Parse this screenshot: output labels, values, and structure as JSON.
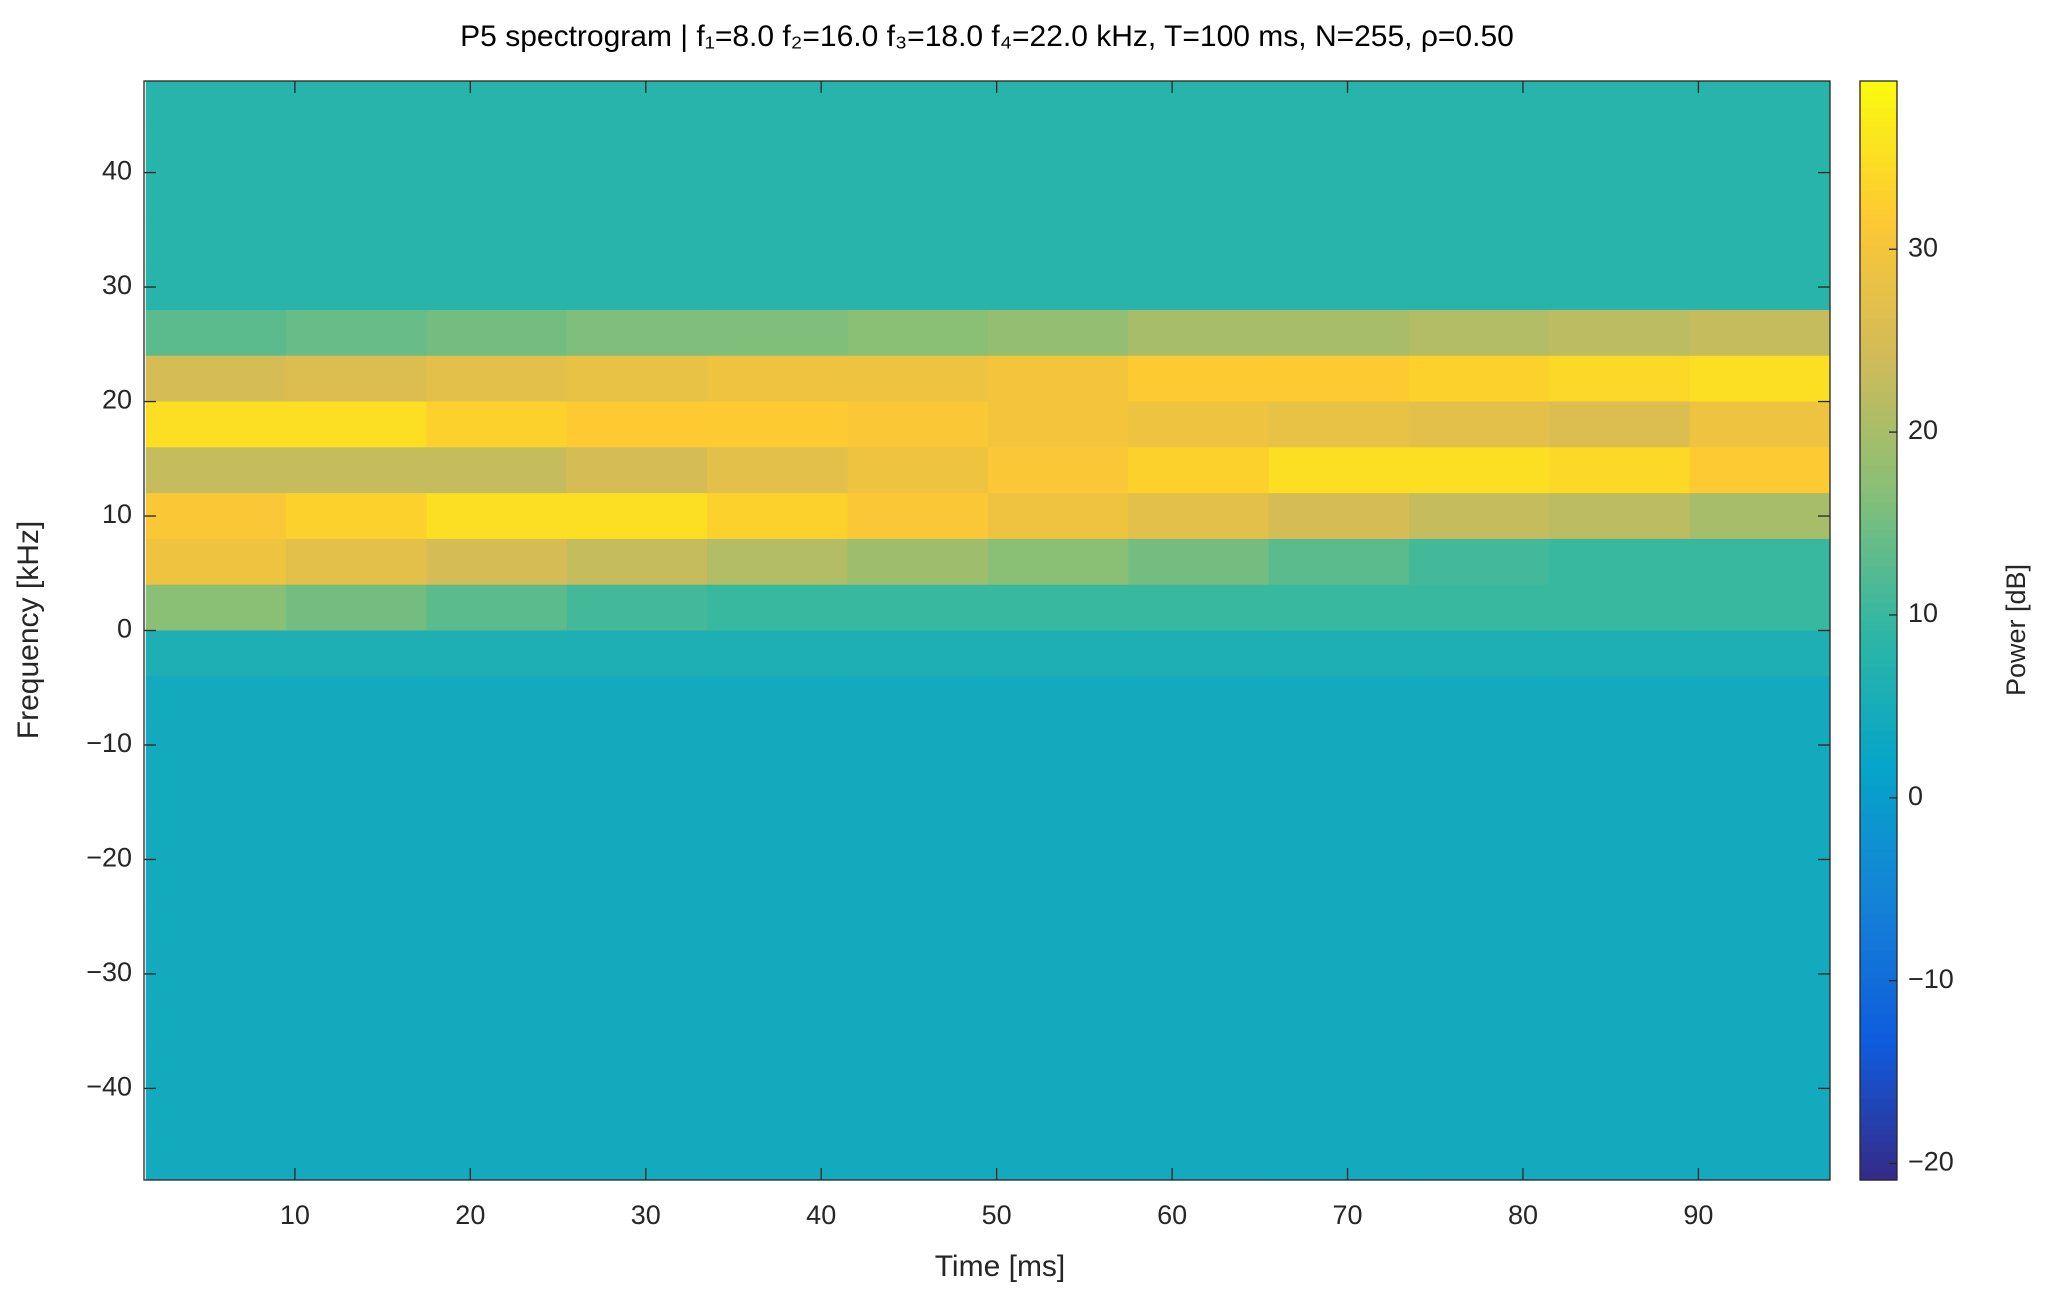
{
  "chart_data": {
    "type": "heatmap",
    "title": "P5 spectrogram | f₁=8.0 f₂=16.0 f₃=18.0 f₄=22.0 kHz, T=100 ms, N=255, ρ=0.50",
    "x_label": "Time [ms]",
    "y_label": "Frequency [kHz]",
    "colorbar_label": "Power [dB]",
    "colormap": "parula",
    "x": [
      5.5,
      13.5,
      21.5,
      29.5,
      37.5,
      45.5,
      53.5,
      61.5,
      69.5,
      77.5,
      85.5,
      93.5
    ],
    "y": [
      46,
      42,
      38,
      34,
      30,
      26,
      22,
      18,
      14,
      10,
      6,
      2,
      -2,
      -6,
      -10,
      -14,
      -18,
      -22,
      -26,
      -30,
      -34,
      -38,
      -42,
      -46
    ],
    "z": [
      [
        8,
        8,
        8,
        8,
        8,
        8,
        8,
        8,
        8,
        8,
        8,
        8
      ],
      [
        8,
        8,
        8,
        8,
        8,
        8,
        8,
        8,
        8,
        8,
        8,
        8
      ],
      [
        8,
        8,
        8,
        8,
        8,
        8,
        8,
        8,
        8,
        8,
        8,
        8
      ],
      [
        8,
        8,
        8,
        8,
        8,
        8,
        8,
        8,
        8,
        8,
        8,
        8
      ],
      [
        8,
        8,
        8,
        8,
        8,
        8,
        8,
        8,
        8,
        8,
        8,
        8
      ],
      [
        13,
        14,
        15,
        16,
        16,
        17,
        18,
        20,
        20,
        21,
        22,
        23
      ],
      [
        25,
        26,
        27,
        28,
        29,
        29,
        30,
        32,
        32,
        33,
        34,
        35
      ],
      [
        35,
        35,
        33,
        32,
        32,
        31,
        30,
        29,
        28,
        27,
        26,
        29
      ],
      [
        23,
        23,
        23,
        25,
        27,
        29,
        31,
        33,
        35,
        35,
        34,
        32
      ],
      [
        31,
        33,
        35,
        35,
        33,
        31,
        29,
        27,
        25,
        23,
        22,
        20
      ],
      [
        29,
        27,
        25,
        23,
        21,
        19,
        17,
        15,
        13,
        11,
        10,
        10
      ],
      [
        17,
        15,
        13,
        11,
        10,
        10,
        10,
        10,
        10,
        10,
        10,
        10
      ],
      [
        6,
        6,
        6,
        6,
        6,
        6,
        6,
        6,
        6,
        6,
        6,
        6
      ],
      [
        4,
        4,
        4,
        4,
        4,
        4,
        4,
        4,
        4,
        4,
        4,
        4
      ],
      [
        4,
        4,
        4,
        4,
        4,
        4,
        4,
        4,
        4,
        4,
        4,
        4
      ],
      [
        4,
        4,
        4,
        4,
        4,
        4,
        4,
        4,
        4,
        4,
        4,
        4
      ],
      [
        4,
        4,
        4,
        4,
        4,
        4,
        4,
        4,
        4,
        4,
        4,
        4
      ],
      [
        4,
        4,
        4,
        4,
        4,
        4,
        4,
        4,
        4,
        4,
        4,
        4
      ],
      [
        4,
        4,
        4,
        4,
        4,
        4,
        4,
        4,
        4,
        4,
        4,
        4
      ],
      [
        4,
        4,
        4,
        4,
        4,
        4,
        4,
        4,
        4,
        4,
        4,
        4
      ],
      [
        4,
        4,
        4,
        4,
        4,
        4,
        4,
        4,
        4,
        4,
        4,
        4
      ],
      [
        4,
        4,
        4,
        4,
        4,
        4,
        4,
        4,
        4,
        4,
        4,
        4
      ],
      [
        4,
        4,
        4,
        4,
        4,
        4,
        4,
        4,
        4,
        4,
        4,
        4
      ],
      [
        4,
        4,
        4,
        4,
        4,
        4,
        4,
        4,
        4,
        4,
        4,
        4
      ]
    ],
    "xlim": [
      1.4,
      97.5
    ],
    "xticks": [
      10,
      20,
      30,
      40,
      50,
      60,
      70,
      80,
      90
    ],
    "ylim": [
      -48,
      48
    ],
    "yticks": [
      {
        "value": -40,
        "label": "−40"
      },
      {
        "value": -30,
        "label": "−30"
      },
      {
        "value": -20,
        "label": "−20"
      },
      {
        "value": -10,
        "label": "−10"
      },
      0,
      10,
      20,
      30,
      40
    ],
    "clim": [
      -20.9,
      39.2
    ],
    "cticks": [
      {
        "value": -20,
        "label": "−20"
      },
      {
        "value": -10,
        "label": "−10"
      },
      0,
      10,
      20,
      30
    ]
  }
}
